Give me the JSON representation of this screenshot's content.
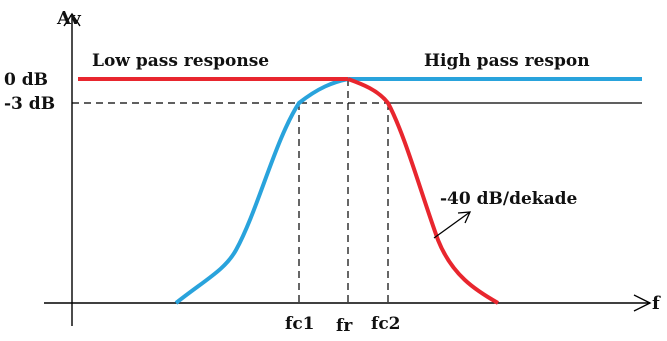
{
  "axes": {
    "y_label": "Av",
    "x_label": "f",
    "y_ticks": [
      "0 dB",
      "-3 dB"
    ],
    "x_ticks": [
      "fc1",
      "fr",
      "fc2"
    ]
  },
  "labels": {
    "low_pass": "Low pass response",
    "high_pass": "High pass respon",
    "slope": "-40 dB/dekade"
  },
  "colors": {
    "low_pass_curve": "#e8262e",
    "high_pass_curve": "#29a3dc",
    "axes": "#000000"
  },
  "icons": {
    "y_arrow": "arrow-up",
    "x_arrow": "arrow-right",
    "slope_pointer": "arrow-up-right"
  }
}
